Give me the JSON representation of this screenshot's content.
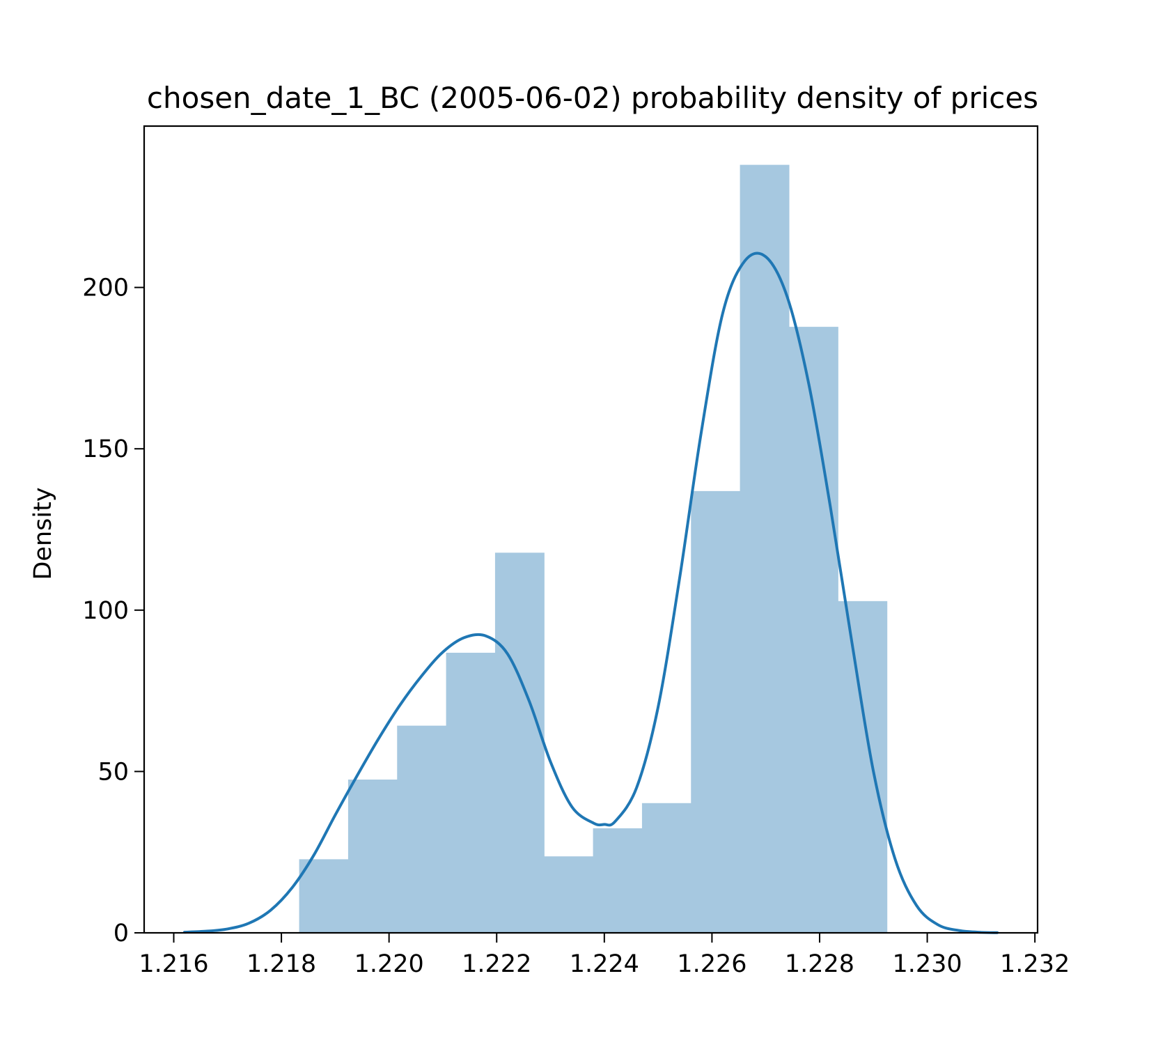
{
  "chart_data": {
    "type": "bar",
    "title": "chosen_date_1_BC (2005-06-02) probability density of prices",
    "xlabel": "",
    "ylabel": "Density",
    "xlim": [
      1.21545,
      1.23205
    ],
    "ylim": [
      0,
      250
    ],
    "xticks": [
      "1.216",
      "1.218",
      "1.220",
      "1.222",
      "1.224",
      "1.226",
      "1.228",
      "1.230",
      "1.232"
    ],
    "yticks": [
      "0",
      "50",
      "100",
      "150",
      "200"
    ],
    "grid": false,
    "colors": {
      "bars": "#a6c8e0",
      "kde": "#1f77b4",
      "axes": "#000000"
    },
    "histogram": {
      "bin_edges": [
        1.21833,
        1.21924,
        1.22015,
        1.22106,
        1.22197,
        1.22288,
        1.22379,
        1.2247,
        1.22561,
        1.22652,
        1.22743,
        1.22834,
        1.22925
      ],
      "values": [
        22.8,
        47.5,
        64.2,
        86.8,
        117.8,
        23.7,
        32.4,
        40.2,
        136.9,
        238.0,
        187.8,
        102.8
      ]
    },
    "kde": {
      "x": [
        1.2162,
        1.2166,
        1.217,
        1.2174,
        1.2178,
        1.2182,
        1.2186,
        1.219,
        1.2194,
        1.2198,
        1.2202,
        1.2206,
        1.221,
        1.2214,
        1.2218,
        1.2222,
        1.2226,
        1.223,
        1.2234,
        1.2238,
        1.224,
        1.2242,
        1.2246,
        1.225,
        1.2254,
        1.2258,
        1.2262,
        1.2266,
        1.227,
        1.2274,
        1.2278,
        1.2282,
        1.2286,
        1.229,
        1.2294,
        1.2298,
        1.2302,
        1.2306,
        1.231,
        1.2313
      ],
      "y": [
        0.2,
        0.5,
        1.2,
        3.0,
        7.0,
        14.0,
        24.0,
        36.5,
        48.5,
        60.0,
        70.5,
        79.5,
        87.0,
        91.5,
        92.0,
        86.5,
        72.0,
        53.0,
        39.0,
        34.0,
        33.6,
        34.5,
        45.0,
        70.0,
        110.0,
        155.0,
        192.0,
        208.0,
        209.5,
        197.0,
        170.0,
        132.0,
        90.0,
        50.0,
        23.0,
        8.5,
        2.5,
        0.7,
        0.15,
        0.05
      ]
    }
  }
}
